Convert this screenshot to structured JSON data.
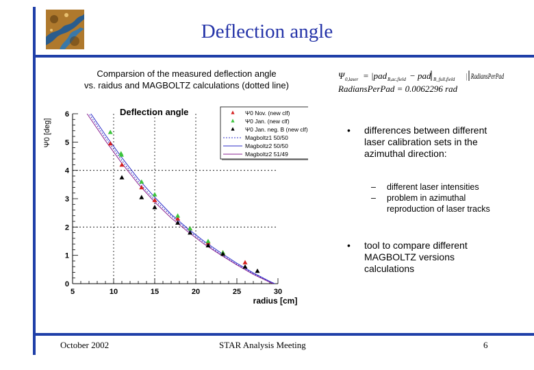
{
  "slide": {
    "title": "Deflection angle",
    "caption_line1": "Comparsion of the measured deflection angle",
    "caption_line2": "vs. raidus and MAGBOLTZ calculations (dotted line)",
    "formula_line1_lhs": "Ψ",
    "formula_line1_sub": "0,laser",
    "formula_line1_rhs": "= |pad",
    "formula_line1_sub2": "B,ac,field",
    "formula_line1_mid": "− pad",
    "formula_line1_sub3": "B_full,field",
    "formula_line1_end": "| · RadiansPerPad",
    "formula_line2": "RadiansPerPad = 0.0062296 rad",
    "bullet_mark": "•",
    "sub_mark": "–",
    "bullets": [
      {
        "text": "differences between different laser calibration sets in the azimuthal direction:",
        "subs": [
          "different laser intensities",
          "problem in azimuthal reproduction of laser tracks"
        ]
      },
      {
        "text": "tool to compare different MAGBOLTZ versions calculations"
      }
    ],
    "footer_left": "October 2002",
    "footer_center": "STAR Analysis Meeting",
    "page_number": "6"
  },
  "colors": {
    "accent_bar": "#1f3fa8",
    "title": "#2433a8",
    "red": "#d42020",
    "green": "#3cc43c",
    "black": "#000000",
    "blue": "#2c2cc8",
    "purple": "#8a2090"
  },
  "chart_data": {
    "type": "scatter",
    "title": "Deflection angle",
    "xlabel": "radius [cm]",
    "ylabel": "Ψ0 [deg]",
    "xlim": [
      5,
      30
    ],
    "ylim": [
      0,
      6
    ],
    "xticks": [
      5,
      10,
      15,
      20,
      25,
      30
    ],
    "yticks": [
      0,
      1,
      2,
      3,
      4,
      5,
      6
    ],
    "legend_position": "top-right",
    "series": [
      {
        "name": "Ψ0 Nov. (new clf)",
        "marker": "triangle",
        "color": "#d42020",
        "x": [
          9.6,
          11.0,
          13.4,
          15.0,
          17.8,
          19.3,
          21.5,
          23.3,
          26.0
        ],
        "y": [
          4.95,
          4.2,
          3.4,
          2.95,
          2.3,
          1.95,
          1.45,
          1.1,
          0.75
        ]
      },
      {
        "name": "Ψ0 Jan. (new clf)",
        "marker": "triangle",
        "color": "#3cc43c",
        "x": [
          9.6,
          10.9,
          10.95,
          13.4,
          15.0,
          17.8,
          19.3,
          21.5,
          23.3
        ],
        "y": [
          5.35,
          4.6,
          4.55,
          3.6,
          3.15,
          2.4,
          1.95,
          1.5,
          1.1
        ]
      },
      {
        "name": "Ψ0 Jan. neg. B (new clf)",
        "marker": "triangle",
        "color": "#000000",
        "x": [
          11.0,
          13.4,
          15.0,
          17.8,
          19.3,
          21.5,
          23.3,
          26.0,
          27.5
        ],
        "y": [
          3.75,
          3.05,
          2.7,
          2.15,
          1.8,
          1.35,
          1.05,
          0.6,
          0.45
        ]
      },
      {
        "name": "Magboltz1 50/50",
        "type": "line",
        "style": "dotted",
        "color": "#2c2cc8",
        "x": [
          5.5,
          7,
          9,
          11,
          13,
          15,
          17,
          19,
          21,
          23,
          25,
          27,
          29,
          30
        ],
        "y": [
          6.6,
          6.0,
          5.15,
          4.35,
          3.6,
          2.95,
          2.4,
          1.9,
          1.45,
          1.05,
          0.68,
          0.35,
          0.07,
          -0.06
        ]
      },
      {
        "name": "Magboltz2 50/50",
        "type": "line",
        "style": "solid",
        "color": "#2c2cc8",
        "x": [
          5.5,
          7,
          9,
          11,
          13,
          15,
          17,
          19,
          21,
          23,
          25,
          27,
          29,
          30
        ],
        "y": [
          6.75,
          6.1,
          5.25,
          4.45,
          3.7,
          3.05,
          2.45,
          1.95,
          1.5,
          1.1,
          0.72,
          0.38,
          0.08,
          -0.05
        ]
      },
      {
        "name": "Magboltz2 51/49",
        "type": "line",
        "style": "solid",
        "color": "#8a2090",
        "x": [
          5.5,
          7,
          9,
          11,
          13,
          15,
          17,
          19,
          21,
          23,
          25,
          27,
          29,
          30
        ],
        "y": [
          6.55,
          5.9,
          5.05,
          4.25,
          3.52,
          2.88,
          2.32,
          1.84,
          1.4,
          1.02,
          0.66,
          0.33,
          0.05,
          -0.07
        ]
      }
    ]
  }
}
